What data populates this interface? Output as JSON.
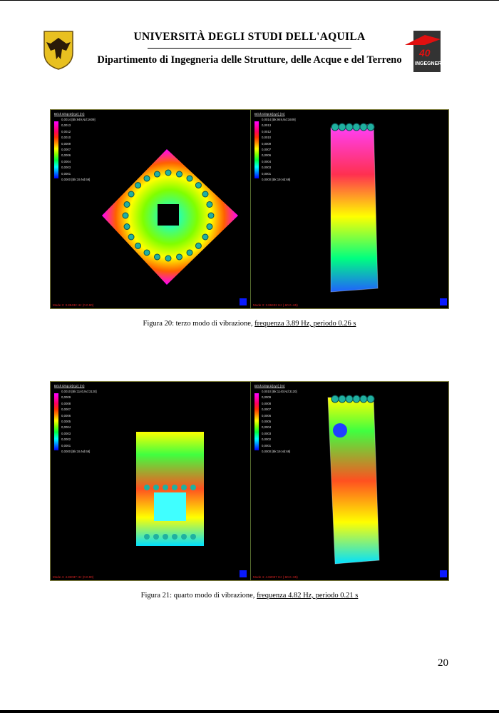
{
  "header": {
    "university": "UNIVERSITÀ DEGLI STUDI DELL'AQUILA",
    "department": "Dipartimento di Ingegneria delle Strutture, delle Acque e del Terreno",
    "right_logo_text": "FACOLTA' DI INGEGNERIA 40 anni"
  },
  "figures": [
    {
      "panels": [
        {
          "title": "Brick Disp:D(xyz) (m)",
          "legend": [
            "0,0014 [Bk:949,Nd:1609]",
            "0,0013",
            "0,0012",
            "0,0010",
            "0,0009",
            "0,0007",
            "0,0006",
            "0,0004",
            "0,0003",
            "0,0001",
            "0,0000 [Bk:19,Nd:69]"
          ],
          "mode": "Mode 3: 3.89432 Hz (0.0.90)",
          "view": "plan"
        },
        {
          "title": "Brick Disp:D(xyz) (m)",
          "legend": [
            "0,0014 [Bk:949,Nd:1609]",
            "0,0013",
            "0,0012",
            "0,0010",
            "0,0009",
            "0,0007",
            "0,0006",
            "0,0004",
            "0,0003",
            "0,0001",
            "0,0000 [Bk:19,Nd:69]"
          ],
          "mode": "Mode 3: 3.89432 Hz (-60.0.-65)",
          "view": "3d"
        }
      ],
      "caption_prefix": "Figura 20: terzo modo di vibrazione, ",
      "caption_underlined": "frequenza 3.89 Hz, periodo 0.26 s"
    },
    {
      "panels": [
        {
          "title": "Brick Disp:D(xyz) (m)",
          "legend": [
            "0,0010 [Bk:1140,Nd:3120]",
            "0,0009",
            "0,0008",
            "0,0007",
            "0,0006",
            "0,0005",
            "0,0004",
            "0,0003",
            "0,0002",
            "0,0001",
            "0,0000 [Bk:19,Nd:69]"
          ],
          "mode": "Mode 4: 4.82037 Hz (0.0.90)",
          "view": "plan"
        },
        {
          "title": "Brick Disp:D(xyz) (m)",
          "legend": [
            "0,0010 [Bk:1140,Nd:3120]",
            "0,0009",
            "0,0008",
            "0,0007",
            "0,0006",
            "0,0005",
            "0,0004",
            "0,0003",
            "0,0002",
            "0,0001",
            "0,0000 [Bk:19,Nd:69]"
          ],
          "mode": "Mode 4: 4.82037 Hz (-60.0.-65)",
          "view": "3d"
        }
      ],
      "caption_prefix": "Figura 21: quarto modo di vibrazione, ",
      "caption_underlined": "frequenza 4.82 Hz, periodo 0.21 s"
    }
  ],
  "page_number": "20"
}
